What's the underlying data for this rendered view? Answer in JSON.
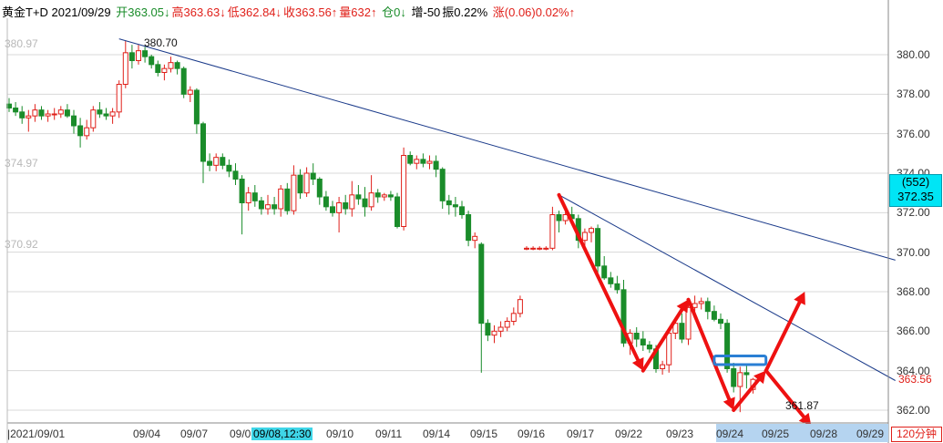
{
  "header": {
    "title": "黄金T+D 2021/09/29",
    "open": "开363.05↓",
    "high": "高363.63↓",
    "low": "低362.84↓",
    "close": "收363.56↑",
    "volume": "量632↑",
    "position": "仓0↓",
    "increase": "增-50",
    "amplitude": "振0.22%",
    "change": "涨(0.06)0.02%↑"
  },
  "colors": {
    "up": "#e0201a",
    "down": "#1a8c2a",
    "trend": "#1a3a8a",
    "arrow": "#ee1111",
    "highlight": "#2a7fd4"
  },
  "price_box": {
    "count": "(552)",
    "price": "372.35"
  },
  "close_label": "363.56",
  "period_label": "120分钟",
  "left_levels": [
    "380.97",
    "374.97",
    "370.92"
  ],
  "annotations": {
    "high_label": "380.70",
    "low_label": "361.87"
  },
  "chart_data": {
    "type": "candlestick",
    "ylim": [
      361.0,
      381.4
    ],
    "y_ticks": [
      362,
      364,
      366,
      368,
      370,
      372,
      374,
      376,
      378,
      380
    ],
    "y_tick_labels": [
      "362.00",
      "364.00",
      "366.00",
      "368.00",
      "370.00",
      "372.00",
      "374.00",
      "376.00",
      "378.00",
      "380.00"
    ],
    "x_labels": [
      "2021/09/01",
      "09/04",
      "09/07",
      "09/08",
      "09/08,12:30",
      "09/10",
      "09/11",
      "09/14",
      "09/15",
      "09/16",
      "09/17",
      "09/22",
      "09/23",
      "09/24",
      "09/25",
      "09/28",
      "09/29"
    ],
    "candles": [
      [
        377.5,
        377.8,
        377.1,
        377.3
      ],
      [
        377.3,
        377.6,
        376.9,
        377.1
      ],
      [
        377.1,
        377.4,
        376.5,
        376.8
      ],
      [
        376.8,
        377.2,
        376.1,
        376.9
      ],
      [
        376.9,
        377.5,
        376.6,
        377.2
      ],
      [
        377.2,
        377.4,
        376.7,
        376.9
      ],
      [
        376.9,
        377.2,
        376.6,
        377.0
      ],
      [
        377.0,
        377.3,
        376.7,
        377.0
      ],
      [
        377.0,
        377.4,
        376.8,
        377.2
      ],
      [
        377.2,
        377.5,
        376.8,
        376.9
      ],
      [
        376.9,
        377.2,
        376.0,
        376.4
      ],
      [
        376.4,
        376.8,
        375.3,
        375.9
      ],
      [
        375.9,
        376.7,
        375.7,
        376.3
      ],
      [
        376.3,
        377.4,
        376.1,
        377.2
      ],
      [
        377.2,
        377.6,
        376.8,
        377.0
      ],
      [
        377.0,
        377.3,
        376.7,
        376.9
      ],
      [
        376.9,
        377.3,
        376.5,
        377.1
      ],
      [
        377.1,
        378.7,
        376.8,
        378.5
      ],
      [
        378.5,
        380.7,
        378.3,
        380.1
      ],
      [
        380.1,
        380.5,
        379.3,
        379.7
      ],
      [
        379.7,
        380.5,
        379.5,
        380.2
      ],
      [
        380.2,
        380.4,
        379.6,
        379.9
      ],
      [
        379.9,
        380.0,
        379.3,
        379.5
      ],
      [
        379.5,
        379.7,
        378.9,
        379.1
      ],
      [
        379.1,
        379.5,
        378.7,
        379.3
      ],
      [
        379.3,
        379.9,
        379.1,
        379.6
      ],
      [
        379.6,
        379.7,
        379.0,
        379.3
      ],
      [
        379.3,
        379.4,
        377.8,
        378.0
      ],
      [
        378.0,
        378.4,
        377.6,
        378.2
      ],
      [
        378.2,
        378.3,
        376.0,
        376.5
      ],
      [
        376.5,
        376.6,
        373.5,
        374.6
      ],
      [
        374.6,
        375.0,
        374.1,
        374.4
      ],
      [
        374.4,
        375.0,
        374.1,
        374.8
      ],
      [
        374.8,
        375.0,
        374.2,
        374.4
      ],
      [
        374.4,
        374.7,
        373.8,
        374.1
      ],
      [
        374.1,
        374.5,
        373.4,
        373.7
      ],
      [
        373.7,
        373.9,
        370.9,
        372.5
      ],
      [
        372.5,
        373.3,
        372.1,
        373.0
      ],
      [
        373.0,
        373.4,
        372.3,
        372.6
      ],
      [
        372.6,
        372.8,
        371.9,
        372.2
      ],
      [
        372.2,
        372.9,
        371.9,
        372.4
      ],
      [
        372.4,
        372.8,
        371.9,
        372.2
      ],
      [
        372.2,
        373.4,
        371.8,
        373.2
      ],
      [
        373.2,
        373.5,
        371.9,
        372.1
      ],
      [
        372.1,
        374.4,
        371.9,
        373.9
      ],
      [
        373.9,
        374.2,
        372.7,
        373.0
      ],
      [
        373.0,
        374.3,
        372.8,
        374.0
      ],
      [
        374.0,
        374.5,
        373.4,
        373.7
      ],
      [
        373.7,
        373.8,
        372.4,
        372.8
      ],
      [
        372.8,
        373.1,
        372.1,
        372.3
      ],
      [
        372.3,
        372.6,
        371.8,
        372.0
      ],
      [
        372.0,
        372.8,
        371.0,
        372.5
      ],
      [
        372.5,
        372.9,
        371.9,
        372.2
      ],
      [
        372.2,
        373.6,
        371.8,
        372.9
      ],
      [
        372.9,
        373.4,
        372.4,
        372.7
      ],
      [
        372.7,
        373.3,
        371.8,
        372.3
      ],
      [
        372.3,
        373.9,
        372.1,
        373.0
      ],
      [
        373.0,
        373.2,
        372.5,
        372.8
      ],
      [
        372.8,
        373.0,
        372.6,
        372.9
      ],
      [
        372.9,
        373.1,
        372.6,
        372.8
      ],
      [
        372.8,
        373.0,
        371.2,
        371.3
      ],
      [
        371.3,
        375.3,
        371.1,
        374.9
      ],
      [
        374.9,
        375.1,
        374.4,
        374.5
      ],
      [
        374.5,
        374.9,
        374.2,
        374.7
      ],
      [
        374.7,
        375.0,
        374.3,
        374.5
      ],
      [
        374.5,
        374.9,
        374.2,
        374.6
      ],
      [
        374.6,
        374.9,
        373.8,
        374.2
      ],
      [
        374.2,
        374.3,
        372.2,
        372.6
      ],
      [
        372.6,
        372.9,
        371.9,
        372.4
      ],
      [
        372.4,
        372.8,
        371.8,
        372.3
      ],
      [
        372.3,
        372.6,
        371.7,
        371.9
      ],
      [
        371.9,
        372.1,
        370.3,
        370.6
      ],
      [
        370.6,
        371.0,
        370.2,
        370.8
      ],
      [
        370.4,
        370.5,
        363.9,
        366.4
      ],
      [
        366.4,
        366.6,
        365.5,
        365.8
      ],
      [
        365.8,
        366.3,
        365.4,
        366.0
      ],
      [
        366.0,
        366.5,
        365.7,
        366.2
      ],
      [
        366.2,
        366.7,
        366.0,
        366.5
      ],
      [
        366.5,
        367.2,
        366.3,
        366.9
      ],
      [
        366.9,
        367.8,
        366.7,
        367.6
      ],
      [
        370.2,
        370.3,
        370.1,
        370.2
      ],
      [
        370.2,
        370.3,
        370.1,
        370.2
      ],
      [
        370.2,
        370.3,
        370.1,
        370.2
      ],
      [
        370.2,
        370.3,
        370.1,
        370.2
      ],
      [
        370.2,
        372.3,
        370.1,
        371.9
      ],
      [
        371.9,
        372.1,
        371.0,
        371.6
      ],
      [
        371.6,
        372.2,
        371.4,
        371.9
      ],
      [
        371.9,
        372.3,
        371.5,
        371.7
      ],
      [
        371.7,
        371.9,
        370.2,
        370.6
      ],
      [
        370.6,
        371.2,
        370.3,
        371.0
      ],
      [
        371.0,
        371.3,
        370.5,
        371.2
      ],
      [
        371.2,
        371.4,
        368.9,
        369.3
      ],
      [
        369.3,
        369.8,
        368.6,
        368.7
      ],
      [
        368.7,
        369.0,
        368.2,
        368.4
      ],
      [
        368.4,
        368.8,
        367.9,
        368.1
      ],
      [
        368.1,
        368.6,
        365.2,
        365.4
      ],
      [
        365.4,
        366.1,
        364.8,
        365.9
      ],
      [
        365.9,
        366.2,
        365.2,
        365.6
      ],
      [
        365.6,
        366.0,
        365.0,
        365.3
      ],
      [
        365.3,
        365.5,
        364.9,
        365.1
      ],
      [
        365.1,
        365.3,
        363.9,
        364.1
      ],
      [
        364.1,
        364.5,
        363.8,
        364.3
      ],
      [
        364.3,
        366.1,
        363.9,
        365.9
      ],
      [
        365.9,
        366.7,
        365.6,
        366.4
      ],
      [
        366.4,
        366.9,
        365.4,
        365.6
      ],
      [
        365.6,
        367.5,
        365.3,
        367.2
      ],
      [
        367.2,
        367.8,
        367.0,
        367.4
      ],
      [
        367.4,
        367.7,
        367.1,
        367.5
      ],
      [
        367.5,
        367.7,
        366.6,
        367.0
      ],
      [
        367.0,
        367.3,
        366.5,
        366.6
      ],
      [
        366.6,
        366.9,
        366.1,
        366.4
      ],
      [
        366.4,
        366.6,
        363.9,
        364.1
      ],
      [
        364.1,
        364.4,
        362.9,
        363.2
      ],
      [
        363.2,
        364.2,
        361.9,
        363.9
      ],
      [
        363.9,
        364.3,
        363.1,
        363.8
      ],
      [
        363.05,
        363.63,
        362.84,
        363.56
      ]
    ],
    "trendlines": [
      {
        "from_index": 17,
        "from_price": 380.8,
        "to_index": 137,
        "to_price": 369.6
      },
      {
        "from_index": 85,
        "from_price": 372.9,
        "to_index": 137,
        "to_price": 363.5
      }
    ],
    "arrows": [
      {
        "from_index": 85,
        "from_price": 372.9,
        "to_index": 98,
        "to_price": 364.0
      },
      {
        "from_index": 98,
        "from_price": 364.0,
        "to_index": 105,
        "to_price": 367.6
      },
      {
        "from_index": 105,
        "from_price": 367.6,
        "to_index": 112,
        "to_price": 362.0
      },
      {
        "from_index": 112,
        "from_price": 362.0,
        "to_index": 117,
        "to_price": 364.0
      },
      {
        "from_index": 117,
        "from_price": 364.0,
        "to_index": 123,
        "to_price": 368.0
      },
      {
        "from_index": 117,
        "from_price": 364.0,
        "to_index": 124,
        "to_price": 361.2
      }
    ],
    "zone": {
      "from_index": 109,
      "to_index": 117,
      "low": 364.4,
      "high": 364.7
    }
  }
}
